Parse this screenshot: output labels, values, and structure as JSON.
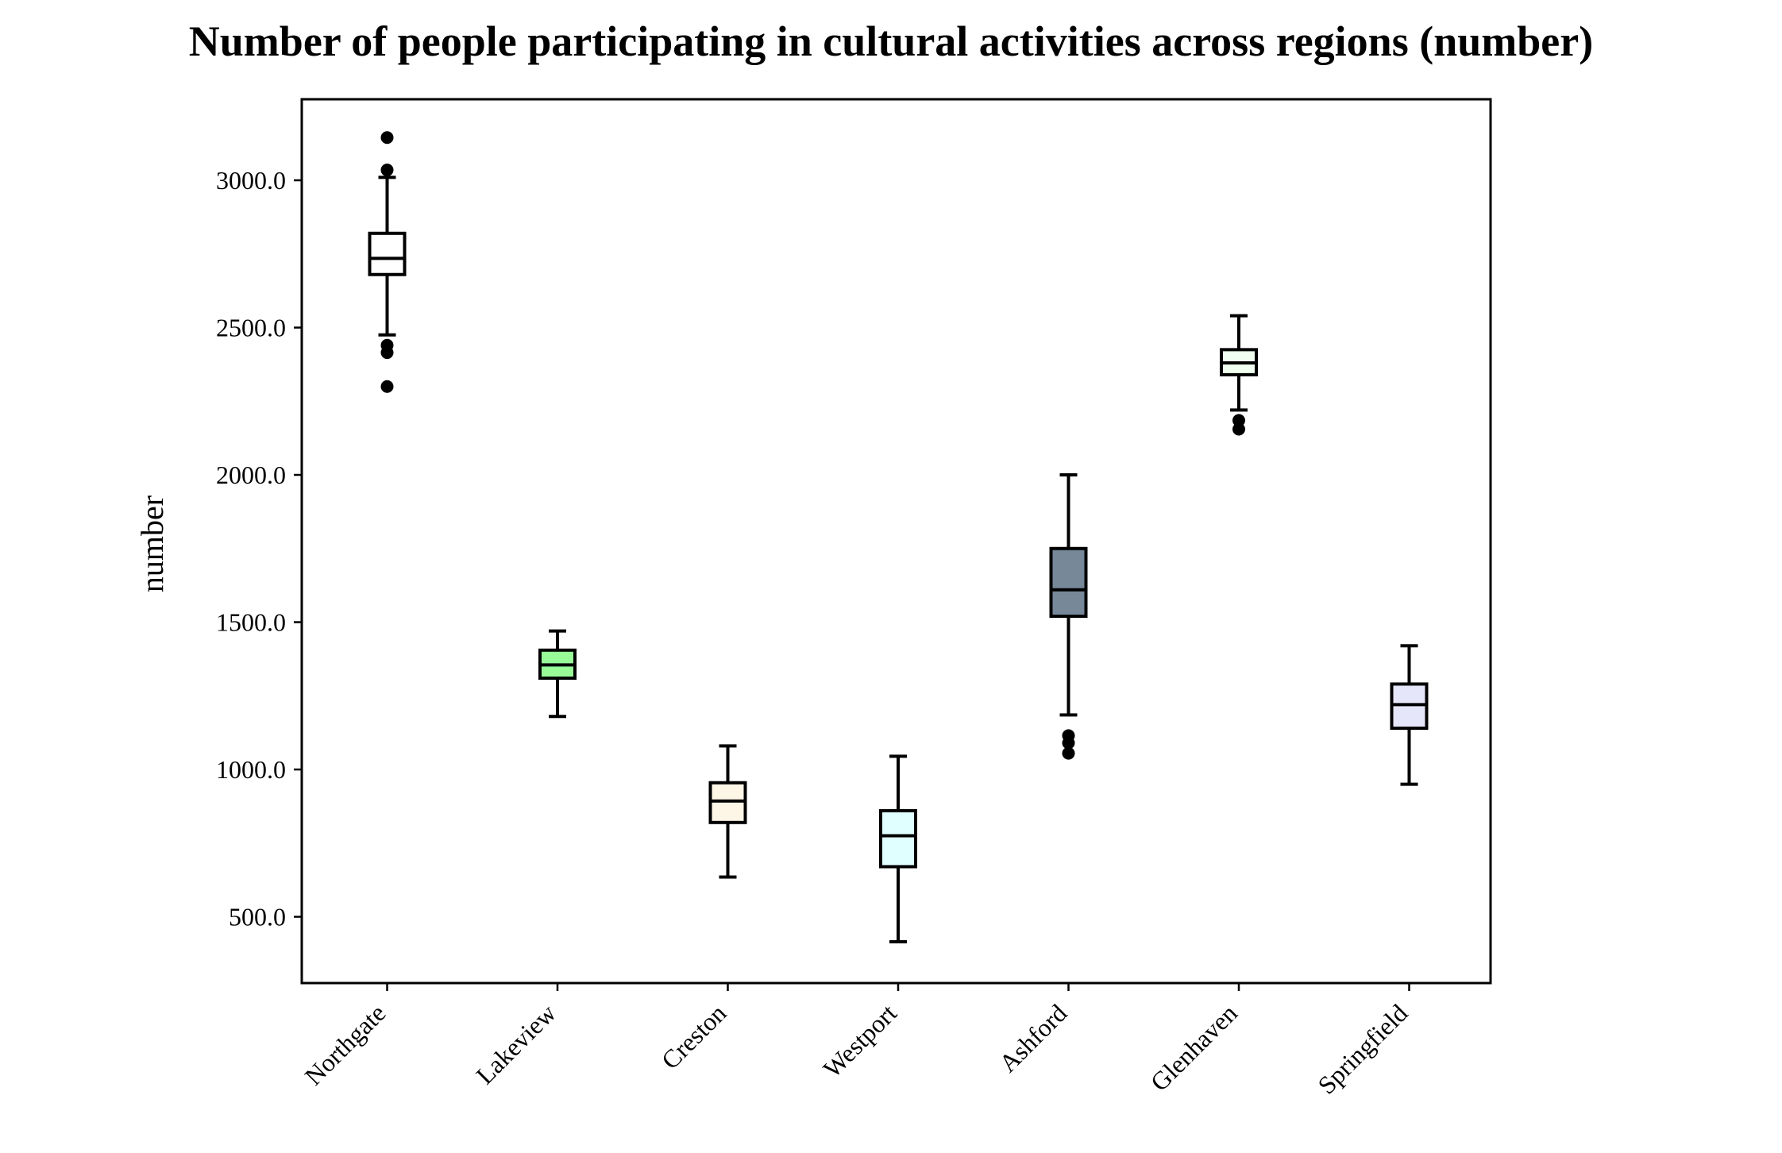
{
  "chart_data": {
    "type": "box",
    "title": "Number of people participating in cultural activities across regions (number)",
    "xlabel": "",
    "ylabel": "number",
    "ylim": [
      275,
      3275
    ],
    "yticks": [
      500,
      1000,
      1500,
      2000,
      2500,
      3000
    ],
    "ytick_labels": [
      "500.0",
      "1000.0",
      "1500.0",
      "2000.0",
      "2500.0",
      "3000.0"
    ],
    "grid": false,
    "legend": "none",
    "categories": [
      "Northgate",
      "Lakeview",
      "Creston",
      "Westport",
      "Ashford",
      "Glenhaven",
      "Springfield"
    ],
    "boxes": [
      {
        "label": "Northgate",
        "whisker_low": 2475,
        "q1": 2680,
        "median": 2735,
        "q3": 2820,
        "whisker_high": 3010,
        "outliers": [
          3145,
          3035,
          2440,
          2415,
          2300
        ],
        "fill": "#ffffff"
      },
      {
        "label": "Lakeview",
        "whisker_low": 1180,
        "q1": 1310,
        "median": 1355,
        "q3": 1405,
        "whisker_high": 1470,
        "outliers": [],
        "fill": "#98fb98"
      },
      {
        "label": "Creston",
        "whisker_low": 635,
        "q1": 820,
        "median": 893,
        "q3": 955,
        "whisker_high": 1080,
        "outliers": [],
        "fill": "#fdf5e6"
      },
      {
        "label": "Westport",
        "whisker_low": 415,
        "q1": 670,
        "median": 775,
        "q3": 860,
        "whisker_high": 1045,
        "outliers": [],
        "fill": "#e0ffff"
      },
      {
        "label": "Ashford",
        "whisker_low": 1185,
        "q1": 1520,
        "median": 1610,
        "q3": 1750,
        "whisker_high": 2000,
        "outliers": [
          1115,
          1090,
          1055
        ],
        "fill": "#778899"
      },
      {
        "label": "Glenhaven",
        "whisker_low": 2220,
        "q1": 2340,
        "median": 2380,
        "q3": 2425,
        "whisker_high": 2540,
        "outliers": [
          2185,
          2155
        ],
        "fill": "#f0fff0"
      },
      {
        "label": "Springfield",
        "whisker_low": 950,
        "q1": 1140,
        "median": 1220,
        "q3": 1290,
        "whisker_high": 1420,
        "outliers": [],
        "fill": "#e6e6fa"
      }
    ]
  }
}
